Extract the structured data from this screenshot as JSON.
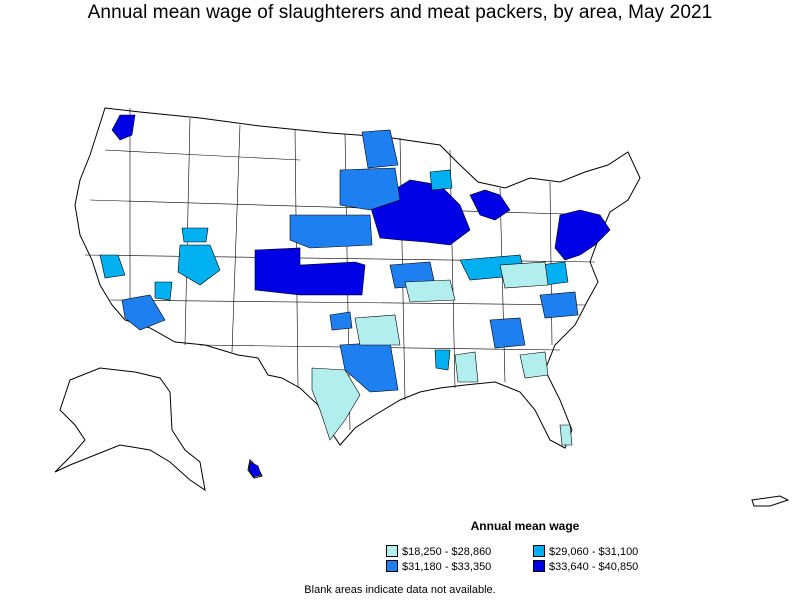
{
  "title": "Annual mean wage of slaughterers and meat packers, by area, May 2021",
  "legend": {
    "title": "Annual mean wage",
    "items": [
      {
        "label": "$18,250 - $28,860",
        "color": "#b3eeee"
      },
      {
        "label": "$29,060 - $31,100",
        "color": "#00b0f0"
      },
      {
        "label": "$31,180 - $33,350",
        "color": "#1e7ff0"
      },
      {
        "label": "$33,640 - $40,850",
        "color": "#0000e6"
      }
    ]
  },
  "footnote": "Blank areas indicate data not available."
}
